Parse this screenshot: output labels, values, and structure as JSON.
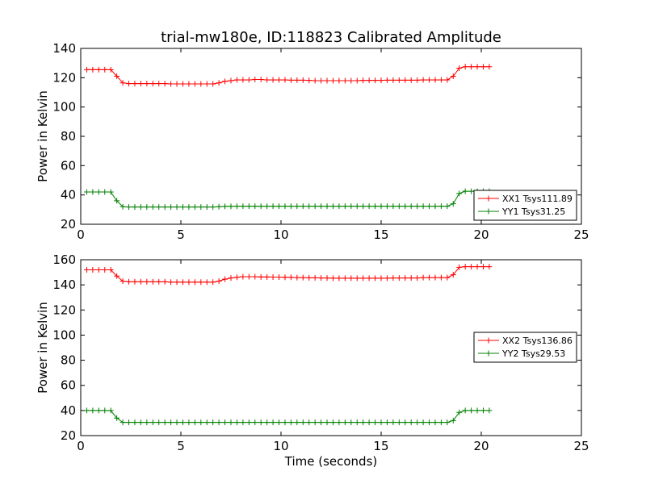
{
  "figure": {
    "title": "trial-mw180e, ID:118823 Calibrated Amplitude",
    "xlabel": "Time (seconds)"
  },
  "chart_data": [
    {
      "type": "line",
      "ylabel": "Power in Kelvin",
      "xlim": [
        0,
        25
      ],
      "ylim": [
        20,
        140
      ],
      "xticks": [
        0,
        5,
        10,
        15,
        20,
        25
      ],
      "yticks": [
        20,
        40,
        60,
        80,
        100,
        120,
        140
      ],
      "grid": false,
      "legend_position": "lower-right",
      "x": [
        0.3,
        0.6,
        0.9,
        1.2,
        1.5,
        1.8,
        2.1,
        2.4,
        2.7,
        3.0,
        3.3,
        3.6,
        3.9,
        4.2,
        4.5,
        4.8,
        5.1,
        5.4,
        5.7,
        6.0,
        6.3,
        6.6,
        6.9,
        7.2,
        7.5,
        7.8,
        8.1,
        8.4,
        8.7,
        9.0,
        9.3,
        9.6,
        9.9,
        10.2,
        10.5,
        10.8,
        11.1,
        11.4,
        11.7,
        12.0,
        12.3,
        12.6,
        12.9,
        13.2,
        13.5,
        13.8,
        14.1,
        14.4,
        14.7,
        15.0,
        15.3,
        15.6,
        15.9,
        16.2,
        16.5,
        16.8,
        17.1,
        17.4,
        17.7,
        18.0,
        18.3,
        18.6,
        18.9,
        19.2,
        19.5,
        19.8,
        20.1,
        20.4
      ],
      "series": [
        {
          "name": "XX1 Tsys111.89",
          "color": "#ff0000",
          "values": [
            125.5,
            125.5,
            125.5,
            125.5,
            125.5,
            121,
            116.5,
            116,
            116,
            116,
            116,
            116,
            116,
            116,
            115.8,
            115.8,
            115.8,
            115.8,
            115.8,
            115.8,
            115.8,
            115.8,
            116.5,
            117.5,
            118,
            118.5,
            118.5,
            118.5,
            118.8,
            118.8,
            118.5,
            118.5,
            118.5,
            118.5,
            118.3,
            118.3,
            118.3,
            118.2,
            118,
            118,
            118,
            118,
            118,
            118,
            118,
            118,
            118.2,
            118.2,
            118.2,
            118.2,
            118.3,
            118.3,
            118.3,
            118.3,
            118.3,
            118.3,
            118.5,
            118.5,
            118.5,
            118.5,
            118.5,
            121,
            126.5,
            127.5,
            127.5,
            127.5,
            127.5,
            127.5
          ]
        },
        {
          "name": "YY1 Tsys31.25",
          "color": "#008000",
          "values": [
            42,
            42,
            42,
            42,
            42,
            36,
            32,
            31.8,
            31.8,
            31.8,
            31.8,
            31.8,
            31.8,
            31.8,
            31.8,
            31.8,
            31.8,
            31.8,
            31.8,
            31.8,
            31.8,
            31.8,
            32,
            32.2,
            32.2,
            32.3,
            32.3,
            32.3,
            32.3,
            32.3,
            32.3,
            32.3,
            32.3,
            32.3,
            32.3,
            32.3,
            32.3,
            32.3,
            32.3,
            32.3,
            32.3,
            32.3,
            32.3,
            32.3,
            32.3,
            32.3,
            32.3,
            32.3,
            32.3,
            32.3,
            32.3,
            32.3,
            32.3,
            32.3,
            32.3,
            32.3,
            32.3,
            32.3,
            32.3,
            32.3,
            32.3,
            34,
            41,
            42.5,
            42.5,
            42.5,
            42.5,
            42.5
          ]
        }
      ]
    },
    {
      "type": "line",
      "ylabel": "Power in Kelvin",
      "xlim": [
        0,
        25
      ],
      "ylim": [
        20,
        160
      ],
      "xticks": [
        0,
        5,
        10,
        15,
        20,
        25
      ],
      "yticks": [
        20,
        40,
        60,
        80,
        100,
        120,
        140,
        160
      ],
      "grid": false,
      "legend_position": "center-right",
      "x": [
        0.3,
        0.6,
        0.9,
        1.2,
        1.5,
        1.8,
        2.1,
        2.4,
        2.7,
        3.0,
        3.3,
        3.6,
        3.9,
        4.2,
        4.5,
        4.8,
        5.1,
        5.4,
        5.7,
        6.0,
        6.3,
        6.6,
        6.9,
        7.2,
        7.5,
        7.8,
        8.1,
        8.4,
        8.7,
        9.0,
        9.3,
        9.6,
        9.9,
        10.2,
        10.5,
        10.8,
        11.1,
        11.4,
        11.7,
        12.0,
        12.3,
        12.6,
        12.9,
        13.2,
        13.5,
        13.8,
        14.1,
        14.4,
        14.7,
        15.0,
        15.3,
        15.6,
        15.9,
        16.2,
        16.5,
        16.8,
        17.1,
        17.4,
        17.7,
        18.0,
        18.3,
        18.6,
        18.9,
        19.2,
        19.5,
        19.8,
        20.1,
        20.4
      ],
      "series": [
        {
          "name": "XX2 Tsys136.86",
          "color": "#ff0000",
          "values": [
            152,
            152,
            152,
            152,
            152,
            147,
            143,
            142.5,
            142.5,
            142.5,
            142.5,
            142.5,
            142.5,
            142.5,
            142.2,
            142.2,
            142.2,
            142.2,
            142.2,
            142.2,
            142.2,
            142.2,
            143,
            144.5,
            145.5,
            146,
            146.5,
            146.5,
            146.5,
            146.3,
            146.3,
            146.2,
            146.2,
            146,
            146,
            145.8,
            145.8,
            145.6,
            145.6,
            145.5,
            145.5,
            145.3,
            145.3,
            145.3,
            145.3,
            145.3,
            145.3,
            145.3,
            145.3,
            145.3,
            145.3,
            145.5,
            145.5,
            145.5,
            145.5,
            145.5,
            145.8,
            145.8,
            145.8,
            145.8,
            145.8,
            148,
            154,
            154.5,
            154.5,
            154.5,
            154.5,
            154.5
          ]
        },
        {
          "name": "YY2 Tsys29.53",
          "color": "#008000",
          "values": [
            40,
            40,
            40,
            40,
            40,
            34,
            30.5,
            30.5,
            30.5,
            30.5,
            30.5,
            30.5,
            30.5,
            30.5,
            30.5,
            30.5,
            30.5,
            30.5,
            30.5,
            30.5,
            30.5,
            30.5,
            30.5,
            30.5,
            30.5,
            30.5,
            30.5,
            30.5,
            30.5,
            30.5,
            30.5,
            30.5,
            30.5,
            30.5,
            30.5,
            30.5,
            30.5,
            30.5,
            30.5,
            30.5,
            30.5,
            30.5,
            30.5,
            30.5,
            30.5,
            30.5,
            30.5,
            30.5,
            30.5,
            30.5,
            30.5,
            30.5,
            30.5,
            30.5,
            30.5,
            30.5,
            30.5,
            30.5,
            30.5,
            30.5,
            30.5,
            32,
            38.5,
            40,
            40,
            40,
            40,
            40
          ]
        }
      ]
    }
  ]
}
